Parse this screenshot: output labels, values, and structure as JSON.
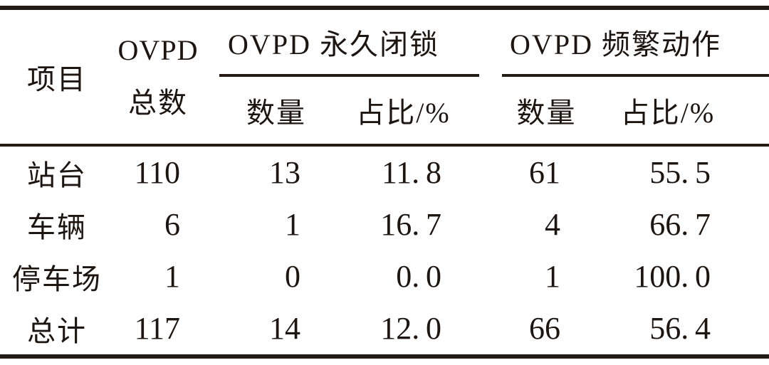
{
  "colors": {
    "ink": "#1d1510",
    "rule": "#241b15",
    "background": "#ffffff"
  },
  "table": {
    "header": {
      "item": "项目",
      "total_line1": "OVPD",
      "total_line2": "总数",
      "group_permanent_lock": "OVPD 永久闭锁",
      "group_frequent_action": "OVPD 频繁动作",
      "sub_count": "数量",
      "sub_pct": "占比/%"
    },
    "rows": [
      {
        "item": "站台",
        "total": "110",
        "lock_count": "13",
        "lock_pct": "11.8",
        "freq_count": "61",
        "freq_pct": "55.5"
      },
      {
        "item": "车辆",
        "total": "6",
        "lock_count": "1",
        "lock_pct": "16.7",
        "freq_count": "4",
        "freq_pct": "66.7"
      },
      {
        "item": "停车场",
        "total": "1",
        "lock_count": "0",
        "lock_pct": "0.0",
        "freq_count": "1",
        "freq_pct": "100.0"
      },
      {
        "item": "总计",
        "total": "117",
        "lock_count": "14",
        "lock_pct": "12.0",
        "freq_count": "66",
        "freq_pct": "56.4"
      }
    ]
  },
  "chart_data": {
    "type": "table",
    "columns": [
      "项目",
      "OVPD 总数",
      "OVPD 永久闭锁 数量",
      "OVPD 永久闭锁 占比/%",
      "OVPD 频繁动作 数量",
      "OVPD 频繁动作 占比/%"
    ],
    "rows": [
      [
        "站台",
        110,
        13,
        11.8,
        61,
        55.5
      ],
      [
        "车辆",
        6,
        1,
        16.7,
        4,
        66.7
      ],
      [
        "停车场",
        1,
        0,
        0.0,
        1,
        100.0
      ],
      [
        "总计",
        117,
        14,
        12.0,
        66,
        56.4
      ]
    ]
  }
}
